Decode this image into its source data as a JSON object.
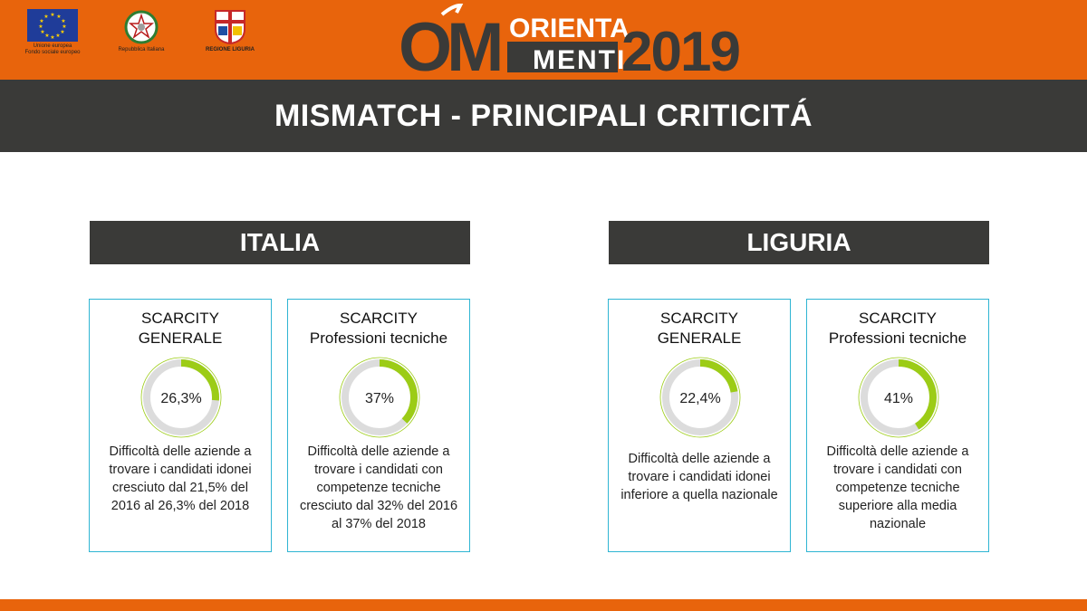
{
  "header": {
    "logos": [
      {
        "name": "eu",
        "caption": "Unione europea\nFondo sociale europeo"
      },
      {
        "name": "italy",
        "caption": "Repubblica Italiana"
      },
      {
        "name": "liguria",
        "caption": "REGIONE LIGURIA"
      }
    ],
    "brand": {
      "mark": "OM",
      "line1": "ORIENTA",
      "line2": "MENTI",
      "year": "2019"
    }
  },
  "title": "MISMATCH - PRINCIPALI CRITICITÁ",
  "regions": [
    {
      "label": "ITALIA"
    },
    {
      "label": "LIGURIA"
    }
  ],
  "cards": [
    {
      "title1": "SCARCITY",
      "title2": "GENERALE",
      "percent_label": "26,3%",
      "value": 26.3,
      "description": "Difficoltà delle aziende a trovare i candidati idonei cresciuto dal 21,5% del 2016 al 26,3% del 2018"
    },
    {
      "title1": "SCARCITY",
      "title2": "Professioni tecniche",
      "percent_label": "37%",
      "value": 37,
      "description": "Difficoltà delle aziende a trovare i candidati con competenze tecniche cresciuto dal 32% del 2016 al 37% del 2018"
    },
    {
      "title1": "SCARCITY",
      "title2": "GENERALE",
      "percent_label": "22,4%",
      "value": 22.4,
      "description": "Difficoltà delle aziende a trovare i candidati idonei inferiore a quella nazionale"
    },
    {
      "title1": "SCARCITY",
      "title2": "Professioni tecniche",
      "percent_label": "41%",
      "value": 41,
      "description": "Difficoltà delle aziende a trovare i candidati con competenze tecniche superiore alla media nazionale"
    }
  ],
  "colors": {
    "orange": "#e8640c",
    "dark": "#3a3a38",
    "accent": "#9ccc16",
    "track": "#dcdcdc",
    "border": "#2fb5d3"
  }
}
